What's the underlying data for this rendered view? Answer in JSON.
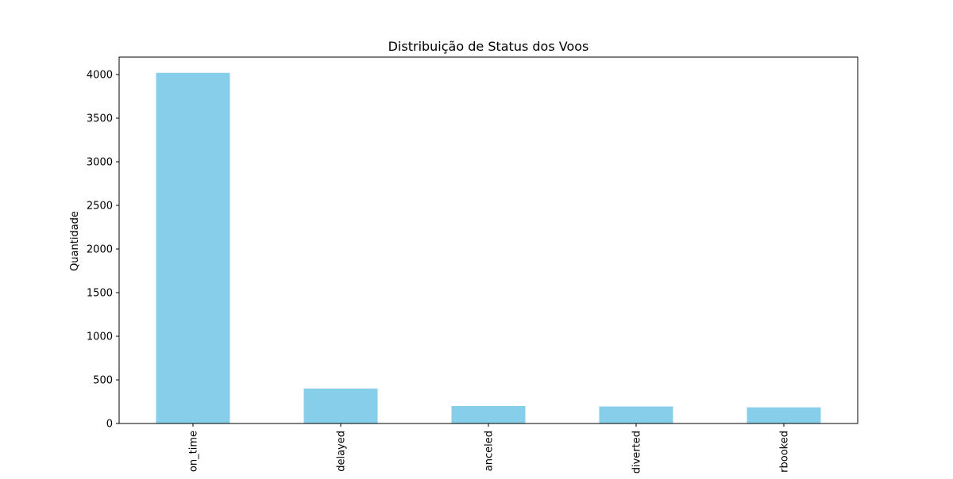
{
  "chart_data": {
    "type": "bar",
    "title": "Distribuição de Status dos Voos",
    "xlabel": "",
    "ylabel": "Quantidade",
    "categories": [
      "on_time",
      "delayed",
      "canceled",
      "diverted",
      "overbooked"
    ],
    "visible_tick_text": [
      "on_time",
      "delayed",
      "anceled",
      "diverted",
      "rbooked"
    ],
    "values": [
      4020,
      400,
      200,
      195,
      185
    ],
    "ylim": [
      0,
      4200
    ],
    "yticks": [
      0,
      500,
      1000,
      1500,
      2000,
      2500,
      3000,
      3500,
      4000
    ],
    "bar_color": "#87ceeb",
    "grid": false,
    "legend": "none"
  }
}
